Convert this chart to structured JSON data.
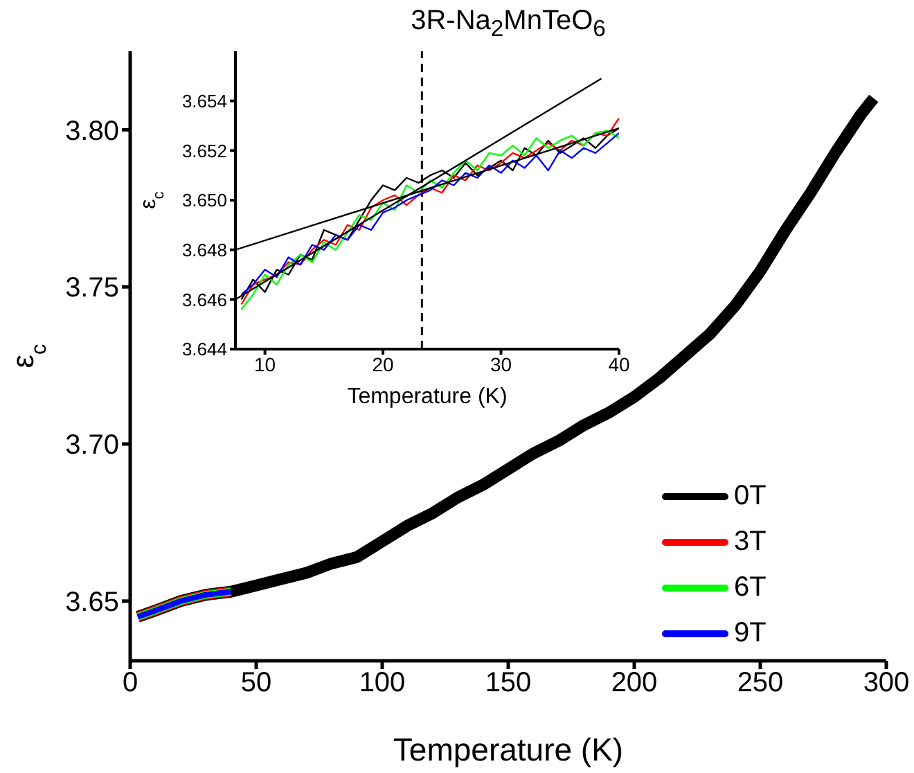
{
  "chart_data": [
    {
      "type": "line",
      "title": "3R-Na$_{2}$MnTeO$_{6}$",
      "xlabel": "Temperature (K)",
      "ylabel": "ε$_{c}$",
      "xlim": [
        0,
        300
      ],
      "xticks": [
        0,
        50,
        100,
        150,
        200,
        250,
        300
      ],
      "ylim": [
        3.631,
        3.825
      ],
      "yticks": [
        {
          "value": 3.65,
          "label": "3.65"
        },
        {
          "value": 3.7,
          "label": "3.70"
        },
        {
          "value": 3.75,
          "label": "3.75"
        },
        {
          "value": 3.8,
          "label": "3.80"
        }
      ],
      "legend": "bottom right",
      "series": [
        {
          "name": "0T",
          "color": "#000000",
          "x": [
            3,
            10,
            20,
            30,
            40,
            50,
            60,
            70,
            80,
            90,
            100,
            110,
            120,
            130,
            140,
            150,
            160,
            170,
            180,
            190,
            200,
            210,
            220,
            230,
            240,
            250,
            260,
            270,
            280,
            290,
            295
          ],
          "values": [
            3.645,
            3.647,
            3.65,
            3.652,
            3.653,
            3.655,
            3.657,
            3.659,
            3.662,
            3.664,
            3.669,
            3.674,
            3.678,
            3.683,
            3.687,
            3.692,
            3.697,
            3.701,
            3.706,
            3.71,
            3.715,
            3.721,
            3.728,
            3.735,
            3.744,
            3.755,
            3.768,
            3.78,
            3.793,
            3.805,
            3.81
          ]
        },
        {
          "name": "3T",
          "color": "#ff0000",
          "x": [
            3,
            10,
            20,
            30,
            40
          ],
          "values": [
            3.645,
            3.647,
            3.65,
            3.652,
            3.653
          ]
        },
        {
          "name": "6T",
          "color": "#00ff00",
          "x": [
            3,
            10,
            20,
            30,
            40
          ],
          "values": [
            3.645,
            3.647,
            3.65,
            3.652,
            3.653
          ]
        },
        {
          "name": "9T",
          "color": "#0000ff",
          "x": [
            3,
            10,
            20,
            30,
            40
          ],
          "values": [
            3.645,
            3.647,
            3.65,
            3.652,
            3.653
          ]
        }
      ]
    },
    {
      "type": "line",
      "xlabel": "Temperature (K)",
      "ylabel": "ε$_{c}$",
      "xlim": [
        7.5,
        40
      ],
      "xticks": [
        10,
        20,
        30,
        40
      ],
      "ylim": [
        3.644,
        3.656
      ],
      "yticks": [
        3.644,
        3.646,
        3.648,
        {
          "value": 3.65,
          "label": "3.650"
        },
        3.652,
        3.654
      ],
      "series": [
        {
          "color": "#000000",
          "x": [
            8,
            9,
            10,
            11,
            12,
            13,
            14,
            15,
            16,
            17,
            18,
            19,
            20,
            21,
            22,
            23,
            24,
            25,
            26,
            27,
            28,
            29,
            30,
            31,
            32,
            33,
            34,
            35,
            36,
            37,
            38,
            39,
            40
          ],
          "values": [
            3.646,
            3.6468,
            3.6463,
            3.6472,
            3.647,
            3.6478,
            3.6476,
            3.6488,
            3.6486,
            3.6484,
            3.6492,
            3.65,
            3.6506,
            3.6504,
            3.6509,
            3.6507,
            3.651,
            3.6512,
            3.6509,
            3.6515,
            3.651,
            3.6513,
            3.6516,
            3.6512,
            3.6521,
            3.6518,
            3.6524,
            3.6519,
            3.6522,
            3.6525,
            3.6521,
            3.6526,
            3.6529
          ]
        },
        {
          "color": "#ff0000",
          "x": [
            8,
            9,
            10,
            11,
            12,
            13,
            14,
            15,
            16,
            17,
            18,
            19,
            20,
            21,
            22,
            23,
            24,
            25,
            26,
            27,
            28,
            29,
            30,
            31,
            32,
            33,
            34,
            35,
            36,
            37,
            38,
            39,
            40
          ],
          "values": [
            3.6458,
            3.6466,
            3.6468,
            3.647,
            3.6475,
            3.6474,
            3.648,
            3.6484,
            3.6482,
            3.649,
            3.6488,
            3.6497,
            3.65,
            3.6502,
            3.6498,
            3.6502,
            3.6505,
            3.6503,
            3.651,
            3.6508,
            3.6514,
            3.6512,
            3.6515,
            3.6519,
            3.6517,
            3.652,
            3.6523,
            3.652,
            3.6524,
            3.6522,
            3.6527,
            3.6526,
            3.6533
          ]
        },
        {
          "color": "#00ff00",
          "x": [
            8,
            9,
            10,
            11,
            12,
            13,
            14,
            15,
            16,
            17,
            18,
            19,
            20,
            21,
            22,
            23,
            24,
            25,
            26,
            27,
            28,
            29,
            30,
            31,
            32,
            33,
            34,
            35,
            36,
            37,
            38,
            39,
            40
          ],
          "values": [
            3.6456,
            3.6462,
            3.647,
            3.6466,
            3.6474,
            3.6478,
            3.6475,
            3.6483,
            3.648,
            3.6487,
            3.6494,
            3.6492,
            3.6499,
            3.6496,
            3.6506,
            3.6503,
            3.6508,
            3.6505,
            3.6511,
            3.6516,
            3.6512,
            3.6519,
            3.6518,
            3.6522,
            3.6518,
            3.6525,
            3.6521,
            3.6524,
            3.6526,
            3.6522,
            3.6527,
            3.6528,
            3.6525
          ]
        },
        {
          "color": "#0000ff",
          "x": [
            8,
            9,
            10,
            11,
            12,
            13,
            14,
            15,
            16,
            17,
            18,
            19,
            20,
            21,
            22,
            23,
            24,
            25,
            26,
            27,
            28,
            29,
            30,
            31,
            32,
            33,
            34,
            35,
            36,
            37,
            38,
            39,
            40
          ],
          "values": [
            3.6462,
            3.6466,
            3.6472,
            3.6469,
            3.6477,
            3.6474,
            3.6482,
            3.648,
            3.6486,
            3.6484,
            3.649,
            3.6488,
            3.6495,
            3.6497,
            3.65,
            3.6502,
            3.6504,
            3.6508,
            3.6506,
            3.6511,
            3.6509,
            3.6514,
            3.6511,
            3.6516,
            3.6513,
            3.6518,
            3.6512,
            3.652,
            3.6517,
            3.6521,
            3.6519,
            3.6523,
            3.6527
          ]
        },
        {
          "color": "#000000",
          "x": [
            7.5,
            38.5
          ],
          "values": [
            3.646,
            3.6549
          ]
        },
        {
          "color": "#000000",
          "x": [
            7.5,
            40
          ],
          "values": [
            3.648,
            3.6529
          ]
        }
      ],
      "ref_lines": [
        {
          "axis": "x",
          "value": 23.3,
          "color": "#000000",
          "line_style": "dashed"
        }
      ]
    }
  ]
}
